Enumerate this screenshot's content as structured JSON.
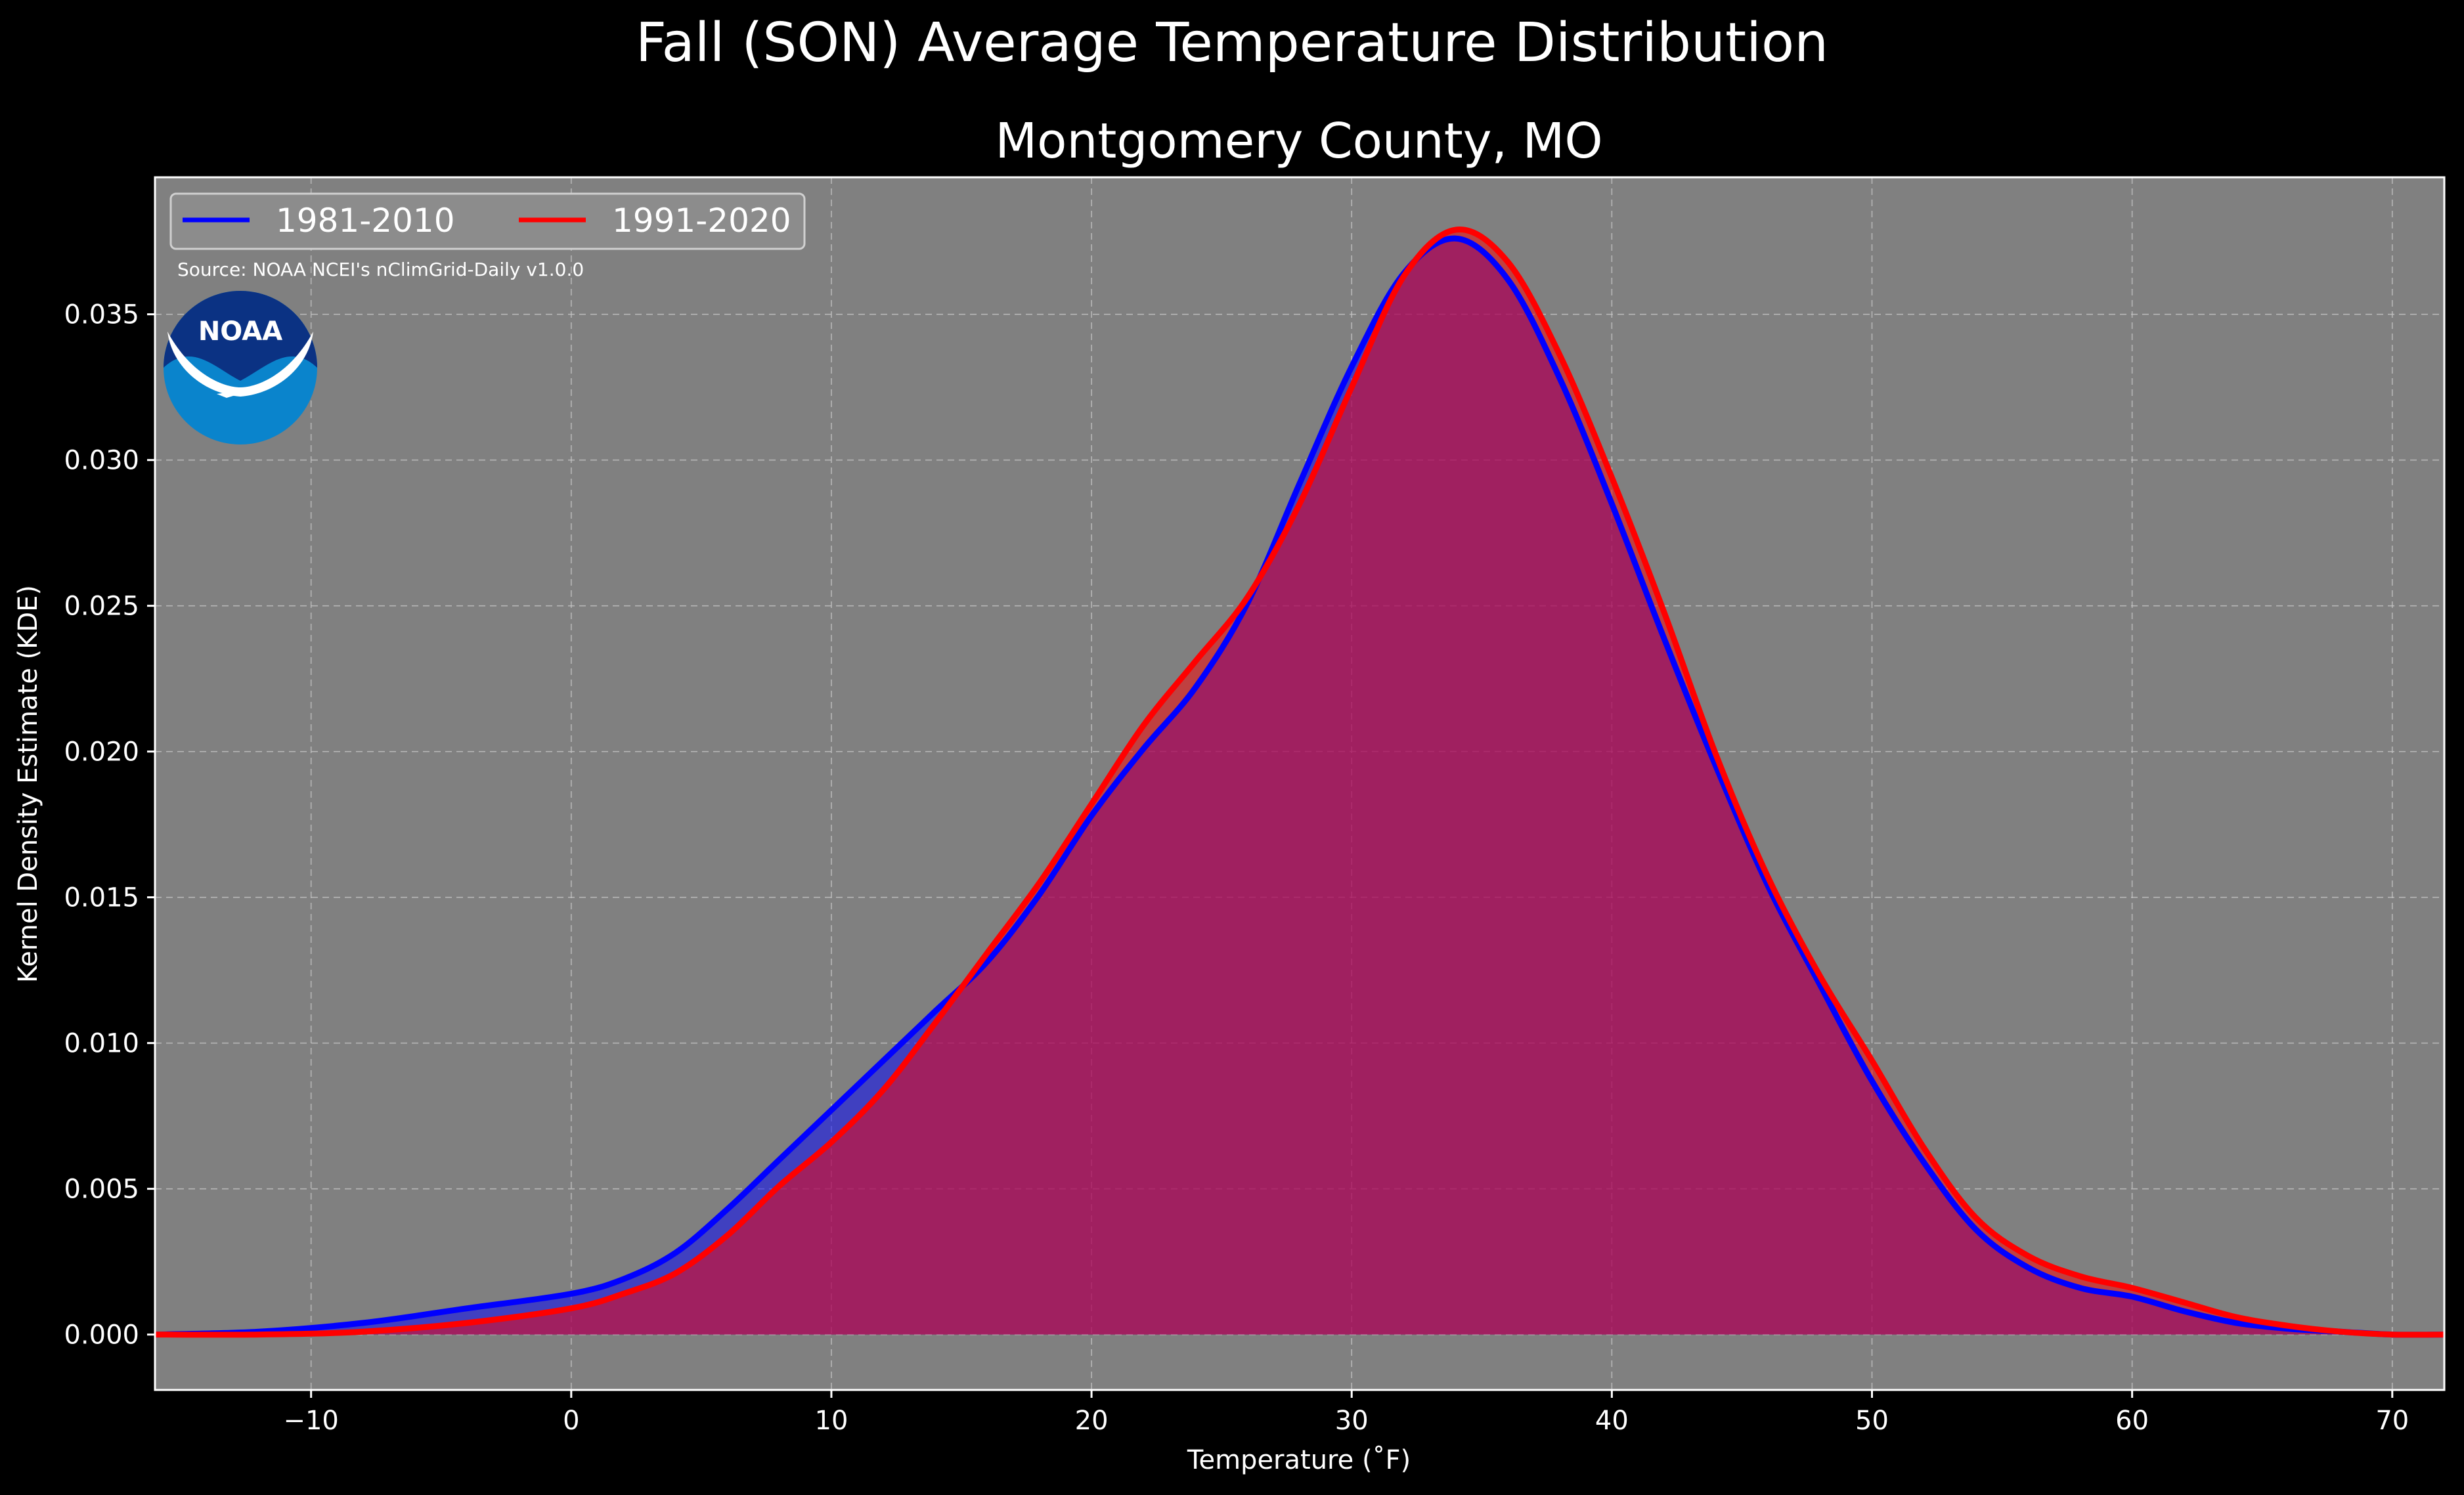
{
  "chart_data": {
    "type": "area",
    "suptitle": "Fall (SON) Average Temperature Distribution",
    "title": "Montgomery County, MO",
    "xlabel": "Temperature ($^\\circ$F)",
    "xlabel_display": "Temperature (˚F)",
    "ylabel": "Kernel Density Estimate (KDE)",
    "xlim": [
      -16,
      72
    ],
    "ylim": [
      -0.0019,
      0.0397
    ],
    "x_ticks": [
      -10,
      0,
      10,
      20,
      30,
      40,
      50,
      60,
      70
    ],
    "x_tick_labels": [
      "−10",
      "0",
      "10",
      "20",
      "30",
      "40",
      "50",
      "60",
      "70"
    ],
    "y_ticks": [
      0.0,
      0.005,
      0.01,
      0.015,
      0.02,
      0.025,
      0.03,
      0.035
    ],
    "y_tick_labels": [
      "0.000",
      "0.005",
      "0.010",
      "0.015",
      "0.020",
      "0.025",
      "0.030",
      "0.035"
    ],
    "grid": true,
    "legend_position": "top-left",
    "source_note": "Source: NOAA NCEI's nClimGrid-Daily v1.0.0",
    "logo_text": "NOAA",
    "series": [
      {
        "name": "1981-2010",
        "color": "#0000ff",
        "x": [
          -16,
          -12,
          -8,
          -4,
          0,
          2,
          4,
          6,
          8,
          10,
          12,
          14,
          16,
          18,
          20,
          22,
          24,
          26,
          28,
          30,
          32,
          34,
          36,
          38,
          40,
          42,
          44,
          46,
          48,
          50,
          52,
          54,
          56,
          58,
          60,
          62,
          64,
          66,
          68,
          70,
          72
        ],
        "values": [
          0.0,
          0.0001,
          0.0004,
          0.0009,
          0.0014,
          0.0019,
          0.0028,
          0.0043,
          0.006,
          0.0077,
          0.0094,
          0.0111,
          0.0128,
          0.0151,
          0.0178,
          0.0201,
          0.0222,
          0.0251,
          0.0292,
          0.0332,
          0.0364,
          0.0376,
          0.0362,
          0.0328,
          0.0285,
          0.0239,
          0.0195,
          0.0154,
          0.012,
          0.0087,
          0.0059,
          0.0036,
          0.0023,
          0.0016,
          0.0013,
          0.0008,
          0.0004,
          0.0002,
          0.0001,
          0.0,
          0.0
        ]
      },
      {
        "name": "1991-2020",
        "color": "#ff0000",
        "x": [
          -16,
          -12,
          -8,
          -4,
          0,
          2,
          4,
          6,
          8,
          10,
          12,
          14,
          16,
          18,
          20,
          22,
          24,
          26,
          28,
          30,
          32,
          34,
          36,
          38,
          40,
          42,
          44,
          46,
          48,
          50,
          52,
          54,
          56,
          58,
          60,
          62,
          64,
          66,
          68,
          70,
          72
        ],
        "values": [
          0.0,
          0.0,
          0.0001,
          0.0004,
          0.0009,
          0.0014,
          0.0021,
          0.0034,
          0.0051,
          0.0066,
          0.0084,
          0.0107,
          0.0131,
          0.0155,
          0.0182,
          0.0209,
          0.0231,
          0.0253,
          0.0285,
          0.0325,
          0.0363,
          0.0379,
          0.0368,
          0.0336,
          0.0294,
          0.0248,
          0.0199,
          0.0157,
          0.0123,
          0.0094,
          0.0064,
          0.004,
          0.0027,
          0.002,
          0.0016,
          0.0011,
          0.0006,
          0.0003,
          0.0001,
          0.0,
          0.0
        ]
      }
    ]
  }
}
